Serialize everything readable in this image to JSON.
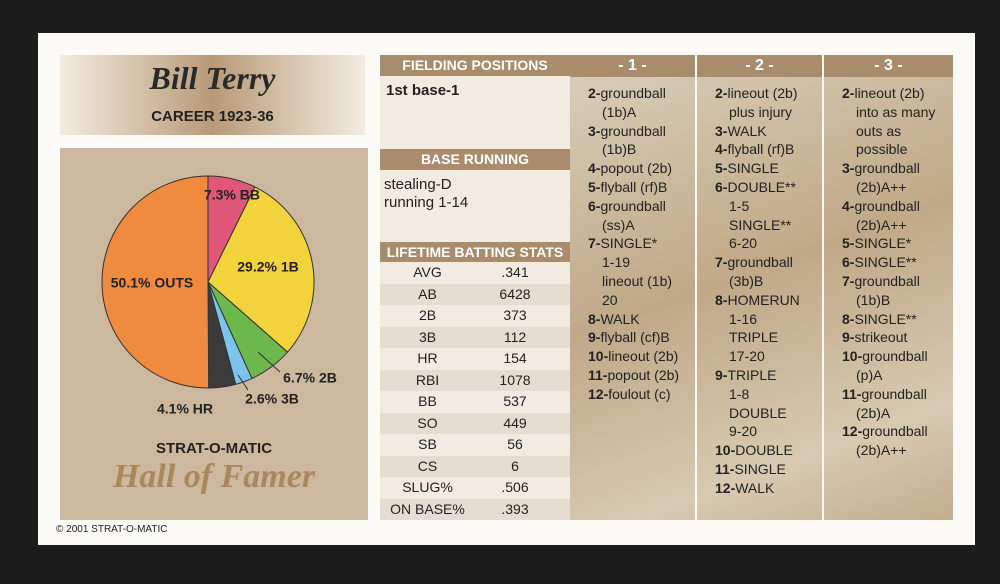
{
  "player": {
    "name": "Bill Terry",
    "career": "CAREER 1923-36"
  },
  "pie": {
    "type": "pie",
    "values": [
      7.3,
      29.2,
      6.7,
      2.6,
      4.1,
      50.1
    ],
    "value_labels": [
      "7.3% BB",
      "29.2% 1B",
      "6.7% 2B",
      "2.6% 3B",
      "4.1% HR",
      "50.1% OUTS"
    ],
    "colors": [
      "#e0577a",
      "#f3d33c",
      "#6db84c",
      "#7cc4ea",
      "#3b3b3b",
      "#f08a3f"
    ]
  },
  "brand": {
    "line1": "STRAT-O-MATIC",
    "line2": "Hall of Famer"
  },
  "copyright": "© 2001 STRAT-O-MATIC",
  "fielding": {
    "title": "FIELDING POSITIONS",
    "text": "1st base-1"
  },
  "base_running": {
    "title": "BASE RUNNING",
    "lines": [
      "stealing-D",
      "running 1-14"
    ]
  },
  "batting": {
    "title": "LIFETIME BATTING STATS",
    "rows": [
      [
        "AVG",
        ".341"
      ],
      [
        "AB",
        "6428"
      ],
      [
        "2B",
        "373"
      ],
      [
        "3B",
        "112"
      ],
      [
        "HR",
        "154"
      ],
      [
        "RBI",
        "1078"
      ],
      [
        "BB",
        "537"
      ],
      [
        "SO",
        "449"
      ],
      [
        "SB",
        "56"
      ],
      [
        "CS",
        "6"
      ],
      [
        "SLUG%",
        ".506"
      ],
      [
        "ON BASE%",
        ".393"
      ]
    ]
  },
  "columns": [
    {
      "title": "- 1 -",
      "lines": [
        {
          "num": "2-",
          "text": "groundball"
        },
        {
          "text": "(1b)A"
        },
        {
          "num": "3-",
          "text": "groundball"
        },
        {
          "text": "(1b)B"
        },
        {
          "num": "4-",
          "text": "popout (2b)"
        },
        {
          "num": "5-",
          "text": "flyball (rf)B"
        },
        {
          "num": "6-",
          "text": "groundball"
        },
        {
          "text": "(ss)A"
        },
        {
          "num": "7-",
          "text": "SINGLE*"
        },
        {
          "text": "1-19"
        },
        {
          "text": "lineout (1b)"
        },
        {
          "text": "20"
        },
        {
          "num": "8-",
          "text": "WALK"
        },
        {
          "num": "9-",
          "text": "flyball (cf)B"
        },
        {
          "num": "10-",
          "text": "lineout (2b)"
        },
        {
          "num": "11-",
          "text": "popout (2b)"
        },
        {
          "num": "12-",
          "text": "foulout (c)"
        }
      ]
    },
    {
      "title": "- 2 -",
      "lines": [
        {
          "num": "2-",
          "text": "lineout (2b)"
        },
        {
          "text": "plus injury"
        },
        {
          "num": "3-",
          "text": "WALK"
        },
        {
          "num": "4-",
          "text": "flyball (rf)B"
        },
        {
          "num": "5-",
          "text": "SINGLE"
        },
        {
          "num": "6-",
          "text": "DOUBLE**"
        },
        {
          "text": "1-5"
        },
        {
          "text": "SINGLE**"
        },
        {
          "text": "6-20"
        },
        {
          "num": "7-",
          "text": "groundball"
        },
        {
          "text": "(3b)B"
        },
        {
          "num": "8-",
          "text": "HOMERUN"
        },
        {
          "text": "1-16"
        },
        {
          "text": "TRIPLE"
        },
        {
          "text": "17-20"
        },
        {
          "num": "9-",
          "text": "TRIPLE"
        },
        {
          "text": "1-8"
        },
        {
          "text": "DOUBLE"
        },
        {
          "text": "9-20"
        },
        {
          "num": "10-",
          "text": "DOUBLE"
        },
        {
          "num": "11-",
          "text": "SINGLE"
        },
        {
          "num": "12-",
          "text": "WALK"
        }
      ]
    },
    {
      "title": "- 3 -",
      "lines": [
        {
          "num": "2-",
          "text": "lineout (2b)"
        },
        {
          "text": "into as many"
        },
        {
          "text": "outs as"
        },
        {
          "text": "possible"
        },
        {
          "num": "3-",
          "text": "groundball"
        },
        {
          "text": "(2b)A++"
        },
        {
          "num": "4-",
          "text": "groundball"
        },
        {
          "text": "(2b)A++"
        },
        {
          "num": "5-",
          "text": "SINGLE*"
        },
        {
          "num": "6-",
          "text": "SINGLE**"
        },
        {
          "num": "7-",
          "text": "groundball"
        },
        {
          "text": "(1b)B"
        },
        {
          "num": "8-",
          "text": "SINGLE**"
        },
        {
          "num": "9-",
          "text": "strikeout"
        },
        {
          "num": "10-",
          "text": "groundball"
        },
        {
          "text": "(p)A"
        },
        {
          "num": "11-",
          "text": "groundball"
        },
        {
          "text": "(2b)A"
        },
        {
          "num": "12-",
          "text": "groundball"
        },
        {
          "text": "(2b)A++"
        }
      ]
    }
  ]
}
